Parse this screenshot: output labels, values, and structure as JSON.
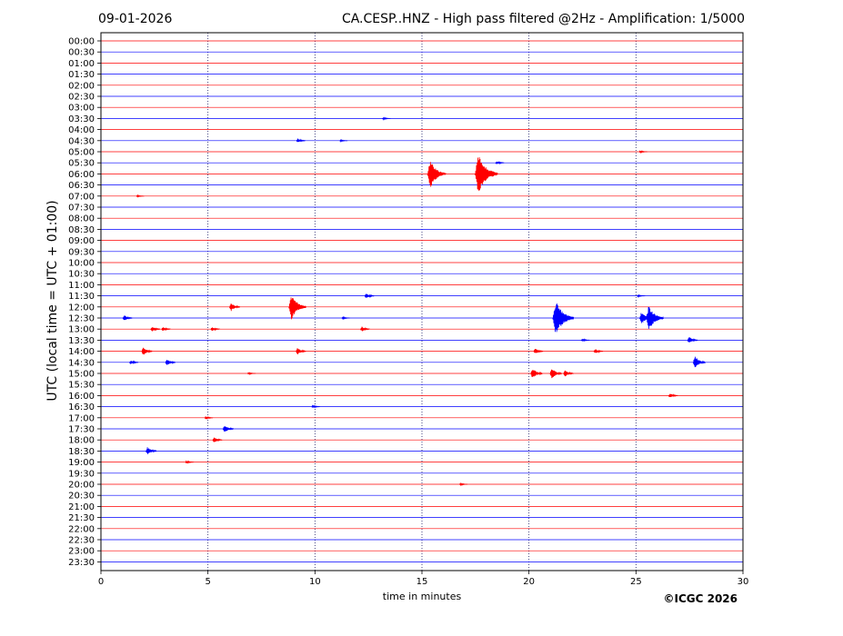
{
  "chart_data": {
    "type": "line",
    "date": "09-01-2026",
    "title": "CA.CESP..HNZ - High pass filtered @2Hz - Amplification: 1/5000",
    "xlabel": "time in minutes",
    "ylabel": "UTC (local time = UTC + 01:00)",
    "copyright": "©ICGC 2026",
    "xlim": [
      0,
      30
    ],
    "x_ticks": [
      0,
      5,
      10,
      15,
      20,
      25,
      30
    ],
    "x_gridlines": [
      5,
      10,
      15,
      20,
      25
    ],
    "y_tick_labels": [
      "00:00",
      "00:30",
      "01:00",
      "01:30",
      "02:00",
      "02:30",
      "03:00",
      "03:30",
      "04:00",
      "04:30",
      "05:00",
      "05:30",
      "06:00",
      "06:30",
      "07:00",
      "07:30",
      "08:00",
      "08:30",
      "09:00",
      "09:30",
      "10:00",
      "10:30",
      "11:00",
      "11:30",
      "12:00",
      "12:30",
      "13:00",
      "13:30",
      "14:00",
      "14:30",
      "15:00",
      "15:30",
      "16:00",
      "16:30",
      "17:00",
      "17:30",
      "18:00",
      "18:30",
      "19:00",
      "19:30",
      "20:00",
      "20:30",
      "21:00",
      "21:30",
      "22:00",
      "22:30",
      "23:00",
      "23:30"
    ],
    "trace_colors": [
      "#ff0000",
      "#0000ff"
    ],
    "events": [
      {
        "row": "03:30",
        "minute": 13.3,
        "amplitude": 0.15
      },
      {
        "row": "04:30",
        "minute": 9.3,
        "amplitude": 0.3
      },
      {
        "row": "04:30",
        "minute": 11.3,
        "amplitude": 0.12
      },
      {
        "row": "05:00",
        "minute": 25.3,
        "amplitude": 0.15
      },
      {
        "row": "05:30",
        "minute": 18.6,
        "amplitude": 0.25
      },
      {
        "row": "06:00",
        "minute": 15.6,
        "amplitude": 2.0
      },
      {
        "row": "06:00",
        "minute": 17.9,
        "amplitude": 2.8
      },
      {
        "row": "07:00",
        "minute": 1.8,
        "amplitude": 0.12
      },
      {
        "row": "11:30",
        "minute": 12.5,
        "amplitude": 0.4
      },
      {
        "row": "11:30",
        "minute": 25.2,
        "amplitude": 0.15
      },
      {
        "row": "12:00",
        "minute": 6.2,
        "amplitude": 0.6
      },
      {
        "row": "12:00",
        "minute": 9.1,
        "amplitude": 1.8
      },
      {
        "row": "12:30",
        "minute": 1.2,
        "amplitude": 0.4
      },
      {
        "row": "12:30",
        "minute": 11.4,
        "amplitude": 0.15
      },
      {
        "row": "12:30",
        "minute": 21.5,
        "amplitude": 2.5
      },
      {
        "row": "12:30",
        "minute": 25.4,
        "amplitude": 0.9
      },
      {
        "row": "12:30",
        "minute": 25.8,
        "amplitude": 1.8
      },
      {
        "row": "13:00",
        "minute": 2.5,
        "amplitude": 0.4
      },
      {
        "row": "13:00",
        "minute": 3.0,
        "amplitude": 0.3
      },
      {
        "row": "13:00",
        "minute": 5.3,
        "amplitude": 0.3
      },
      {
        "row": "13:00",
        "minute": 12.3,
        "amplitude": 0.35
      },
      {
        "row": "13:30",
        "minute": 22.6,
        "amplitude": 0.2
      },
      {
        "row": "13:30",
        "minute": 27.6,
        "amplitude": 0.5
      },
      {
        "row": "14:00",
        "minute": 2.1,
        "amplitude": 0.6
      },
      {
        "row": "14:00",
        "minute": 9.3,
        "amplitude": 0.5
      },
      {
        "row": "14:00",
        "minute": 20.4,
        "amplitude": 0.4
      },
      {
        "row": "14:00",
        "minute": 23.2,
        "amplitude": 0.35
      },
      {
        "row": "14:30",
        "minute": 1.5,
        "amplitude": 0.3
      },
      {
        "row": "14:30",
        "minute": 3.2,
        "amplitude": 0.5
      },
      {
        "row": "14:30",
        "minute": 27.9,
        "amplitude": 0.9
      },
      {
        "row": "15:00",
        "minute": 20.3,
        "amplitude": 0.8
      },
      {
        "row": "15:00",
        "minute": 21.2,
        "amplitude": 0.8
      },
      {
        "row": "15:00",
        "minute": 21.8,
        "amplitude": 0.5
      },
      {
        "row": "15:00",
        "minute": 7.0,
        "amplitude": 0.15
      },
      {
        "row": "16:00",
        "minute": 26.7,
        "amplitude": 0.35
      },
      {
        "row": "16:30",
        "minute": 10.0,
        "amplitude": 0.2
      },
      {
        "row": "17:00",
        "minute": 5.0,
        "amplitude": 0.2
      },
      {
        "row": "17:30",
        "minute": 5.9,
        "amplitude": 0.6
      },
      {
        "row": "18:00",
        "minute": 5.4,
        "amplitude": 0.4
      },
      {
        "row": "18:30",
        "minute": 2.3,
        "amplitude": 0.6
      },
      {
        "row": "19:00",
        "minute": 4.1,
        "amplitude": 0.2
      },
      {
        "row": "20:00",
        "minute": 16.9,
        "amplitude": 0.15
      }
    ]
  }
}
